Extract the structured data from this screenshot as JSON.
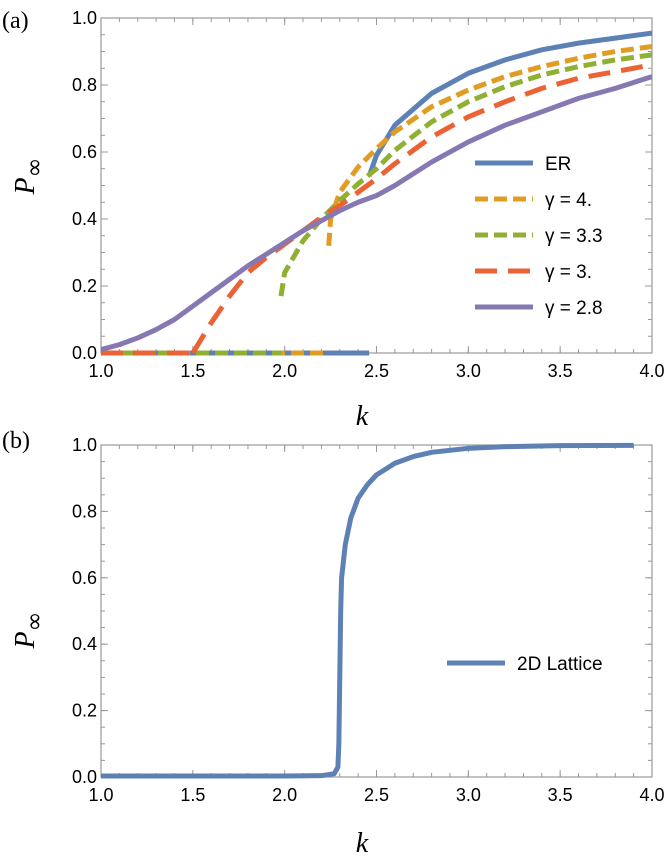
{
  "chart_data": [
    {
      "type": "line",
      "panel_label": "(a)",
      "xlabel": "k",
      "ylabel": {
        "main": "P",
        "sub": "∞"
      },
      "xlim": [
        1.0,
        4.0
      ],
      "ylim": [
        0.0,
        1.0
      ],
      "x_ticks": [
        "1.0",
        "1.5",
        "2.0",
        "2.5",
        "3.0",
        "3.5",
        "4.0"
      ],
      "y_ticks": [
        "0.0",
        "0.2",
        "0.4",
        "0.6",
        "0.8",
        "1.0"
      ],
      "legend_position": "middle-right",
      "series": [
        {
          "name": "ER",
          "style": "solid",
          "color": "#5e81b5",
          "zero_until": 2.46,
          "x": [
            2.46,
            2.5,
            2.6,
            2.8,
            3.0,
            3.2,
            3.4,
            3.6,
            3.8,
            4.0
          ],
          "y": [
            0.528,
            0.59,
            0.68,
            0.775,
            0.835,
            0.875,
            0.905,
            0.925,
            0.94,
            0.955
          ]
        },
        {
          "name": "γ  = 4.",
          "style": "dashed",
          "color": "#e19c24",
          "zero_until": 2.24,
          "x": [
            2.24,
            2.25,
            2.3,
            2.4,
            2.5,
            2.6,
            2.8,
            3.0,
            3.2,
            3.4,
            3.6,
            3.8,
            4.0
          ],
          "y": [
            0.32,
            0.4,
            0.48,
            0.555,
            0.61,
            0.66,
            0.735,
            0.785,
            0.825,
            0.855,
            0.88,
            0.9,
            0.915
          ]
        },
        {
          "name": "γ  = 3.3",
          "style": "dashed",
          "color": "#8fb032",
          "zero_until": 1.98,
          "x": [
            1.98,
            2.0,
            2.1,
            2.2,
            2.3,
            2.4,
            2.5,
            2.6,
            2.8,
            3.0,
            3.2,
            3.4,
            3.6,
            3.8,
            4.0
          ],
          "y": [
            0.17,
            0.24,
            0.335,
            0.4,
            0.455,
            0.505,
            0.55,
            0.605,
            0.69,
            0.75,
            0.795,
            0.83,
            0.855,
            0.875,
            0.89
          ]
        },
        {
          "name": "γ  = 3.",
          "style": "longdash",
          "color": "#eb6235",
          "zero_until": 1.5,
          "x": [
            1.5,
            1.6,
            1.7,
            1.8,
            1.9,
            2.0,
            2.1,
            2.2,
            2.3,
            2.4,
            2.5,
            2.6,
            2.8,
            3.0,
            3.2,
            3.4,
            3.6,
            3.8,
            4.0
          ],
          "y": [
            0.0,
            0.09,
            0.17,
            0.24,
            0.285,
            0.325,
            0.365,
            0.405,
            0.44,
            0.48,
            0.52,
            0.565,
            0.645,
            0.705,
            0.75,
            0.79,
            0.82,
            0.84,
            0.86
          ]
        },
        {
          "name": "γ  = 2.8",
          "style": "solid",
          "color": "#8778b3",
          "zero_until": 1.0,
          "x": [
            1.0,
            1.1,
            1.2,
            1.3,
            1.4,
            1.5,
            1.6,
            1.7,
            1.8,
            1.9,
            2.0,
            2.1,
            2.2,
            2.3,
            2.4,
            2.5,
            2.6,
            2.8,
            3.0,
            3.2,
            3.4,
            3.6,
            3.8,
            4.0
          ],
          "y": [
            0.01,
            0.025,
            0.045,
            0.07,
            0.1,
            0.14,
            0.18,
            0.22,
            0.26,
            0.295,
            0.33,
            0.365,
            0.395,
            0.425,
            0.45,
            0.47,
            0.5,
            0.57,
            0.63,
            0.68,
            0.72,
            0.76,
            0.79,
            0.825
          ]
        }
      ]
    },
    {
      "type": "line",
      "panel_label": "(b)",
      "xlabel": "k",
      "ylabel": {
        "main": "P",
        "sub": "∞"
      },
      "xlim": [
        1.0,
        4.0
      ],
      "ylim": [
        0.0,
        1.0
      ],
      "x_ticks": [
        "1.0",
        "1.5",
        "2.0",
        "2.5",
        "3.0",
        "3.5",
        "4.0"
      ],
      "y_ticks": [
        "0.0",
        "0.2",
        "0.4",
        "0.6",
        "0.8",
        "1.0"
      ],
      "legend_position": "middle-right",
      "series": [
        {
          "name": "2D Lattice",
          "style": "solid",
          "color": "#5e81b5",
          "x": [
            1.0,
            1.5,
            2.0,
            2.2,
            2.27,
            2.29,
            2.295,
            2.3,
            2.305,
            2.31,
            2.33,
            2.36,
            2.4,
            2.45,
            2.5,
            2.6,
            2.7,
            2.8,
            3.0,
            3.2,
            3.5,
            3.9
          ],
          "y": [
            0.003,
            0.003,
            0.003,
            0.004,
            0.01,
            0.03,
            0.1,
            0.3,
            0.5,
            0.6,
            0.7,
            0.78,
            0.84,
            0.88,
            0.91,
            0.945,
            0.965,
            0.978,
            0.99,
            0.995,
            0.998,
            0.999
          ]
        }
      ]
    }
  ]
}
